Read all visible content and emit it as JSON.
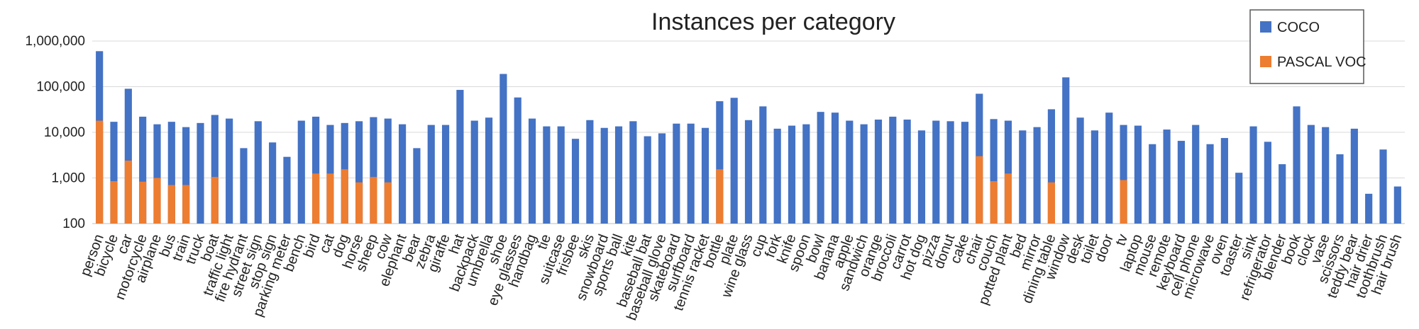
{
  "chart_data": {
    "type": "bar",
    "title": "Instances per category",
    "xlabel": "",
    "ylabel": "",
    "yscale": "log",
    "ylim": [
      100,
      1000000
    ],
    "yticks": [
      "100",
      "1,000",
      "10,000",
      "100,000",
      "1,000,000"
    ],
    "grid": true,
    "legend_position": "top-right",
    "categories": [
      "person",
      "bicycle",
      "car",
      "motorcycle",
      "airplane",
      "bus",
      "train",
      "truck",
      "boat",
      "traffic light",
      "fire hydrant",
      "street sign",
      "stop sign",
      "parking meter",
      "bench",
      "bird",
      "cat",
      "dog",
      "horse",
      "sheep",
      "cow",
      "elephant",
      "bear",
      "zebra",
      "giraffe",
      "hat",
      "backpack",
      "umbrella",
      "shoe",
      "eye glasses",
      "handbag",
      "tie",
      "suitcase",
      "frisbee",
      "skis",
      "snowboard",
      "sports ball",
      "kite",
      "baseball bat",
      "baseball glove",
      "skateboard",
      "surfboard",
      "tennis racket",
      "bottle",
      "plate",
      "wine glass",
      "cup",
      "fork",
      "knife",
      "spoon",
      "bowl",
      "banana",
      "apple",
      "sandwich",
      "orange",
      "broccoli",
      "carrot",
      "hot dog",
      "pizza",
      "donut",
      "cake",
      "chair",
      "couch",
      "potted plant",
      "bed",
      "mirror",
      "dining table",
      "window",
      "desk",
      "toilet",
      "door",
      "tv",
      "laptop",
      "mouse",
      "remote",
      "keyboard",
      "cell phone",
      "microwave",
      "oven",
      "toaster",
      "sink",
      "refrigerator",
      "blender",
      "book",
      "clock",
      "vase",
      "scissors",
      "teddy bear",
      "hair drier",
      "toothbrush",
      "hair brush"
    ],
    "series": [
      {
        "name": "COCO",
        "color": "#4472C4",
        "values": [
          600000,
          17000,
          90000,
          22000,
          15000,
          17000,
          13000,
          16000,
          24000,
          20000,
          4500,
          17500,
          6000,
          2900,
          18000,
          22000,
          14500,
          16000,
          17500,
          21500,
          20000,
          15000,
          4500,
          14500,
          14500,
          85000,
          18000,
          21000,
          190000,
          58000,
          20000,
          13500,
          13500,
          7200,
          18500,
          12500,
          13500,
          17500,
          8200,
          9500,
          15500,
          15500,
          12500,
          48000,
          57000,
          18500,
          37000,
          12000,
          14000,
          15000,
          28000,
          27000,
          18000,
          15000,
          19000,
          22000,
          19000,
          11000,
          18000,
          17500,
          17000,
          70000,
          19500,
          18000,
          11000,
          13000,
          32000,
          160000,
          21000,
          11000,
          27000,
          14500,
          14000,
          5500,
          11500,
          6500,
          14500,
          5500,
          7500,
          1300,
          13500,
          6200,
          2000,
          37000,
          14500,
          13000,
          3300,
          12000,
          450,
          4200,
          650
        ]
      },
      {
        "name": "PASCAL VOC",
        "color": "#ED7D31",
        "values": [
          18000,
          850,
          2400,
          830,
          1000,
          700,
          700,
          null,
          1050,
          null,
          null,
          null,
          null,
          null,
          null,
          1250,
          1250,
          1550,
          800,
          1050,
          800,
          null,
          null,
          null,
          null,
          null,
          null,
          null,
          null,
          null,
          null,
          null,
          null,
          null,
          null,
          null,
          null,
          null,
          null,
          null,
          null,
          null,
          null,
          1550,
          null,
          null,
          null,
          null,
          null,
          null,
          null,
          null,
          null,
          null,
          null,
          null,
          null,
          null,
          null,
          null,
          null,
          3000,
          850,
          1250,
          null,
          null,
          800,
          null,
          null,
          null,
          null,
          900,
          null,
          null,
          null,
          null,
          null,
          null,
          null,
          null,
          null,
          null,
          null,
          null,
          null,
          null,
          null,
          null,
          null,
          null,
          null
        ]
      }
    ]
  }
}
